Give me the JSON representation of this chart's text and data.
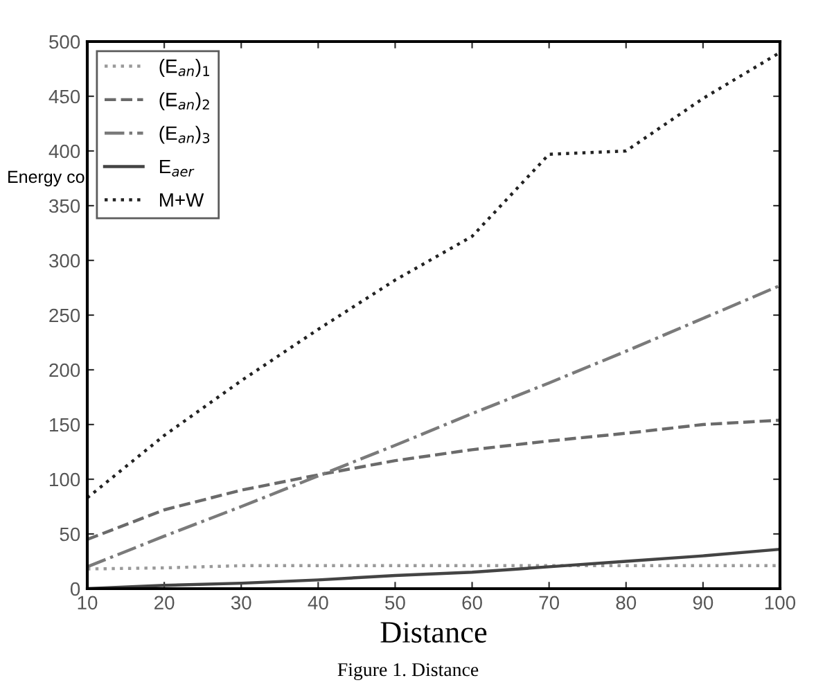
{
  "chart_data": {
    "type": "line",
    "xlabel": "Distance",
    "ylabel": "Energy co",
    "x": [
      10,
      20,
      30,
      40,
      50,
      60,
      70,
      80,
      90,
      100
    ],
    "xlim": [
      10,
      100
    ],
    "xticks": [
      10,
      20,
      30,
      40,
      50,
      60,
      70,
      80,
      90,
      100
    ],
    "ylim": [
      0,
      500
    ],
    "yticks": [
      0,
      50,
      100,
      150,
      200,
      250,
      300,
      350,
      400,
      450,
      500
    ],
    "grid": false,
    "legend": "top left",
    "marker": "none",
    "annotations": [
      "Figure 1. Distance"
    ],
    "series": [
      {
        "name": "(E$_{an}$)$_{1}$",
        "color": "#9a9a9a",
        "line_style": "dotted",
        "values": [
          18,
          19,
          21,
          21,
          21,
          21,
          21,
          21,
          21,
          21
        ]
      },
      {
        "name": "(E$_{an}$)$_{2}$",
        "color": "#6a6a6a",
        "line_style": "dashed",
        "values": [
          45,
          72,
          90,
          104,
          117,
          127,
          135,
          142,
          150,
          154
        ]
      },
      {
        "name": "(E$_{an}$)$_{3}$",
        "color": "#7a7a7a",
        "line_style": "dashdot",
        "values": [
          20,
          48,
          75,
          103,
          131,
          160,
          188,
          217,
          247,
          277
        ]
      },
      {
        "name": "E$_{aer}$",
        "color": "#444444",
        "line_style": "solid",
        "values": [
          0,
          3,
          5,
          8,
          12,
          15,
          20,
          25,
          30,
          36
        ]
      },
      {
        "name": "M+W",
        "color": "#222222",
        "line_style": "dotted",
        "values": [
          83,
          140,
          190,
          237,
          282,
          322,
          397,
          400,
          448,
          490
        ]
      }
    ]
  }
}
